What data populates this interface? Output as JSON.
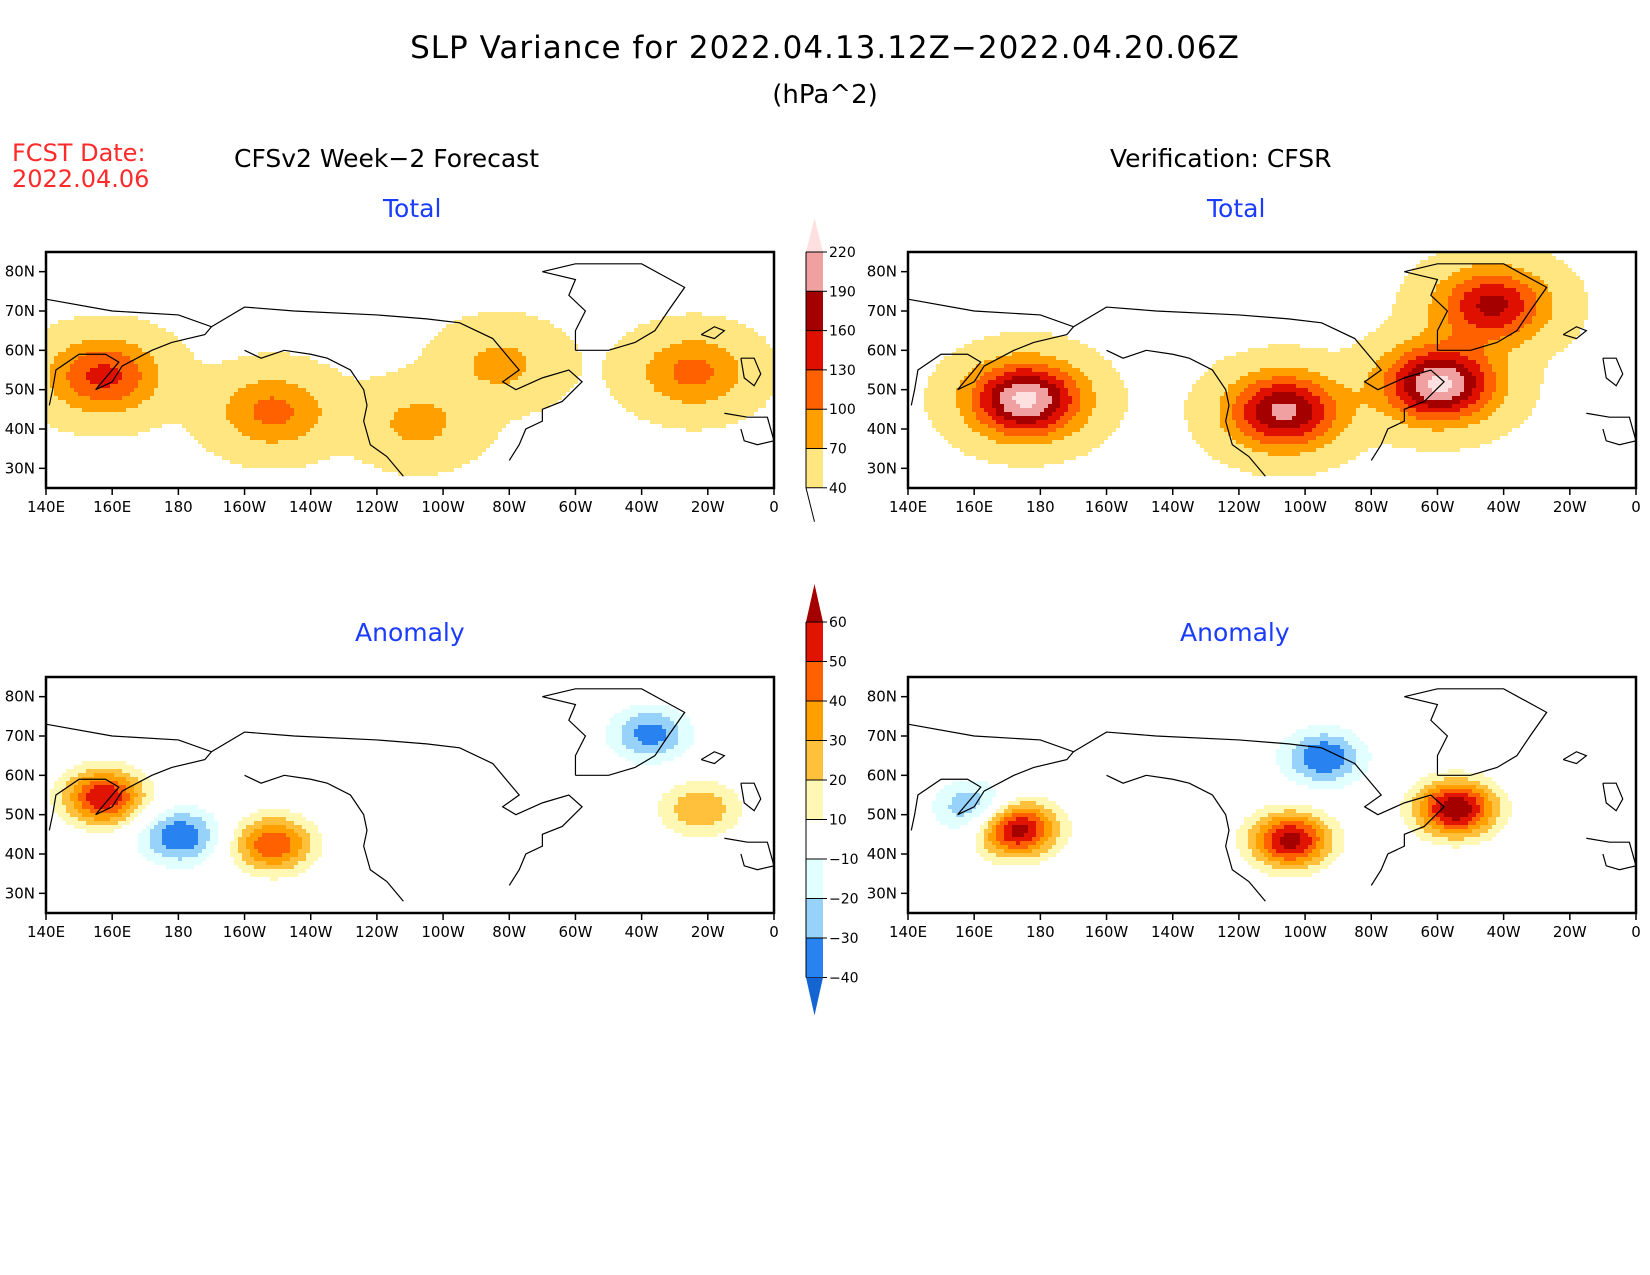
{
  "header": {
    "title": "SLP Variance for 2022.04.13.12Z−2022.04.20.06Z",
    "units": "(hPa^2)",
    "fcst_label": "FCST Date:",
    "fcst_date": "2022.04.06"
  },
  "columns": [
    {
      "title": "CFSv2 Week−2 Forecast"
    },
    {
      "title": "Verification: CFSR"
    }
  ],
  "panel_subtitles": {
    "total": "Total",
    "anomaly": "Anomaly"
  },
  "chart_data": [
    {
      "type": "heatmap",
      "title": "CFSv2 Week-2 Forecast — Total",
      "projection": "lat-lon",
      "x_ticks": [
        "140E",
        "160E",
        "180",
        "160W",
        "140W",
        "120W",
        "100W",
        "80W",
        "60W",
        "40W",
        "20W",
        "0"
      ],
      "y_ticks": [
        "30N",
        "40N",
        "50N",
        "60N",
        "70N",
        "80N"
      ],
      "lon_range": [
        140,
        360
      ],
      "lat_range": [
        25,
        85
      ],
      "features": [
        {
          "desc": "NW Pacific max near Kamchatka",
          "lon": 157,
          "lat": 54,
          "value": 140
        },
        {
          "desc": "Central N Pacific max",
          "lon": 208,
          "lat": 45,
          "value": 110
        },
        {
          "desc": "Hudson Bay region",
          "lon": 277,
          "lat": 57,
          "value": 80
        },
        {
          "desc": "NE Atlantic max",
          "lon": 335,
          "lat": 55,
          "value": 110
        },
        {
          "desc": "Western US band",
          "lon": 252,
          "lat": 42,
          "value": 80
        }
      ]
    },
    {
      "type": "heatmap",
      "title": "Verification: CFSR — Total",
      "projection": "lat-lon",
      "x_ticks": [
        "140E",
        "160E",
        "180",
        "160W",
        "140W",
        "120W",
        "100W",
        "80W",
        "60W",
        "40W",
        "20W",
        "0"
      ],
      "y_ticks": [
        "30N",
        "40N",
        "50N",
        "60N",
        "70N",
        "80N"
      ],
      "lon_range": [
        140,
        360
      ],
      "lat_range": [
        25,
        85
      ],
      "features": [
        {
          "desc": "N Pacific storm track max",
          "lon": 175,
          "lat": 48,
          "value": 230
        },
        {
          "desc": "Labrador / NW Atlantic max",
          "lon": 300,
          "lat": 52,
          "value": 230
        },
        {
          "desc": "US Rockies max",
          "lon": 253,
          "lat": 45,
          "value": 200
        },
        {
          "desc": "Greenland ridge",
          "lon": 316,
          "lat": 72,
          "value": 170
        }
      ]
    },
    {
      "type": "heatmap",
      "title": "CFSv2 Week-2 Forecast — Anomaly",
      "projection": "lat-lon",
      "x_ticks": [
        "140E",
        "160E",
        "180",
        "160W",
        "140W",
        "120W",
        "100W",
        "80W",
        "60W",
        "40W",
        "20W",
        "0"
      ],
      "y_ticks": [
        "30N",
        "40N",
        "50N",
        "60N",
        "70N",
        "80N"
      ],
      "lon_range": [
        140,
        360
      ],
      "lat_range": [
        25,
        85
      ],
      "features": [
        {
          "desc": "Kamchatka positive",
          "lon": 157,
          "lat": 55,
          "value": 60
        },
        {
          "desc": "N Pacific negative",
          "lon": 180,
          "lat": 45,
          "value": -40
        },
        {
          "desc": "Gulf of Alaska positive",
          "lon": 208,
          "lat": 43,
          "value": 50
        },
        {
          "desc": "Greenland negative",
          "lon": 322,
          "lat": 71,
          "value": -35
        },
        {
          "desc": "NE Atlantic positive",
          "lon": 337,
          "lat": 52,
          "value": 30
        }
      ]
    },
    {
      "type": "heatmap",
      "title": "Verification: CFSR — Anomaly",
      "projection": "lat-lon",
      "x_ticks": [
        "140E",
        "160E",
        "180",
        "160W",
        "140W",
        "120W",
        "100W",
        "80W",
        "60W",
        "40W",
        "20W",
        "0"
      ],
      "y_ticks": [
        "30N",
        "40N",
        "50N",
        "60N",
        "70N",
        "80N"
      ],
      "lon_range": [
        140,
        360
      ],
      "lat_range": [
        25,
        85
      ],
      "features": [
        {
          "desc": "N Pacific positive band",
          "lon": 172,
          "lat": 47,
          "value": 70
        },
        {
          "desc": "Canada negative",
          "lon": 265,
          "lat": 65,
          "value": -40
        },
        {
          "desc": "US Rockies positive",
          "lon": 255,
          "lat": 44,
          "value": 65
        },
        {
          "desc": "NW Atlantic positive",
          "lon": 305,
          "lat": 52,
          "value": 70
        },
        {
          "desc": "Bering Sea negative",
          "lon": 160,
          "lat": 52,
          "value": -35
        }
      ]
    }
  ],
  "colorbars": {
    "total": {
      "levels": [
        "40",
        "70",
        "100",
        "130",
        "160",
        "190",
        "220"
      ],
      "colors": [
        "#ffe680",
        "#ffa000",
        "#ff6000",
        "#e01000",
        "#a50000",
        "#f0a0a0",
        "#ffe0e0"
      ]
    },
    "anomaly": {
      "levels": [
        "−40",
        "−30",
        "−20",
        "−10",
        "10",
        "20",
        "30",
        "40",
        "50",
        "60"
      ],
      "colors": [
        "#1464d2",
        "#2882f0",
        "#96d2fa",
        "#e1ffff",
        "#ffffff",
        "#fff8b4",
        "#ffc03c",
        "#ffa000",
        "#ff6000",
        "#e01400",
        "#a50000"
      ]
    }
  }
}
